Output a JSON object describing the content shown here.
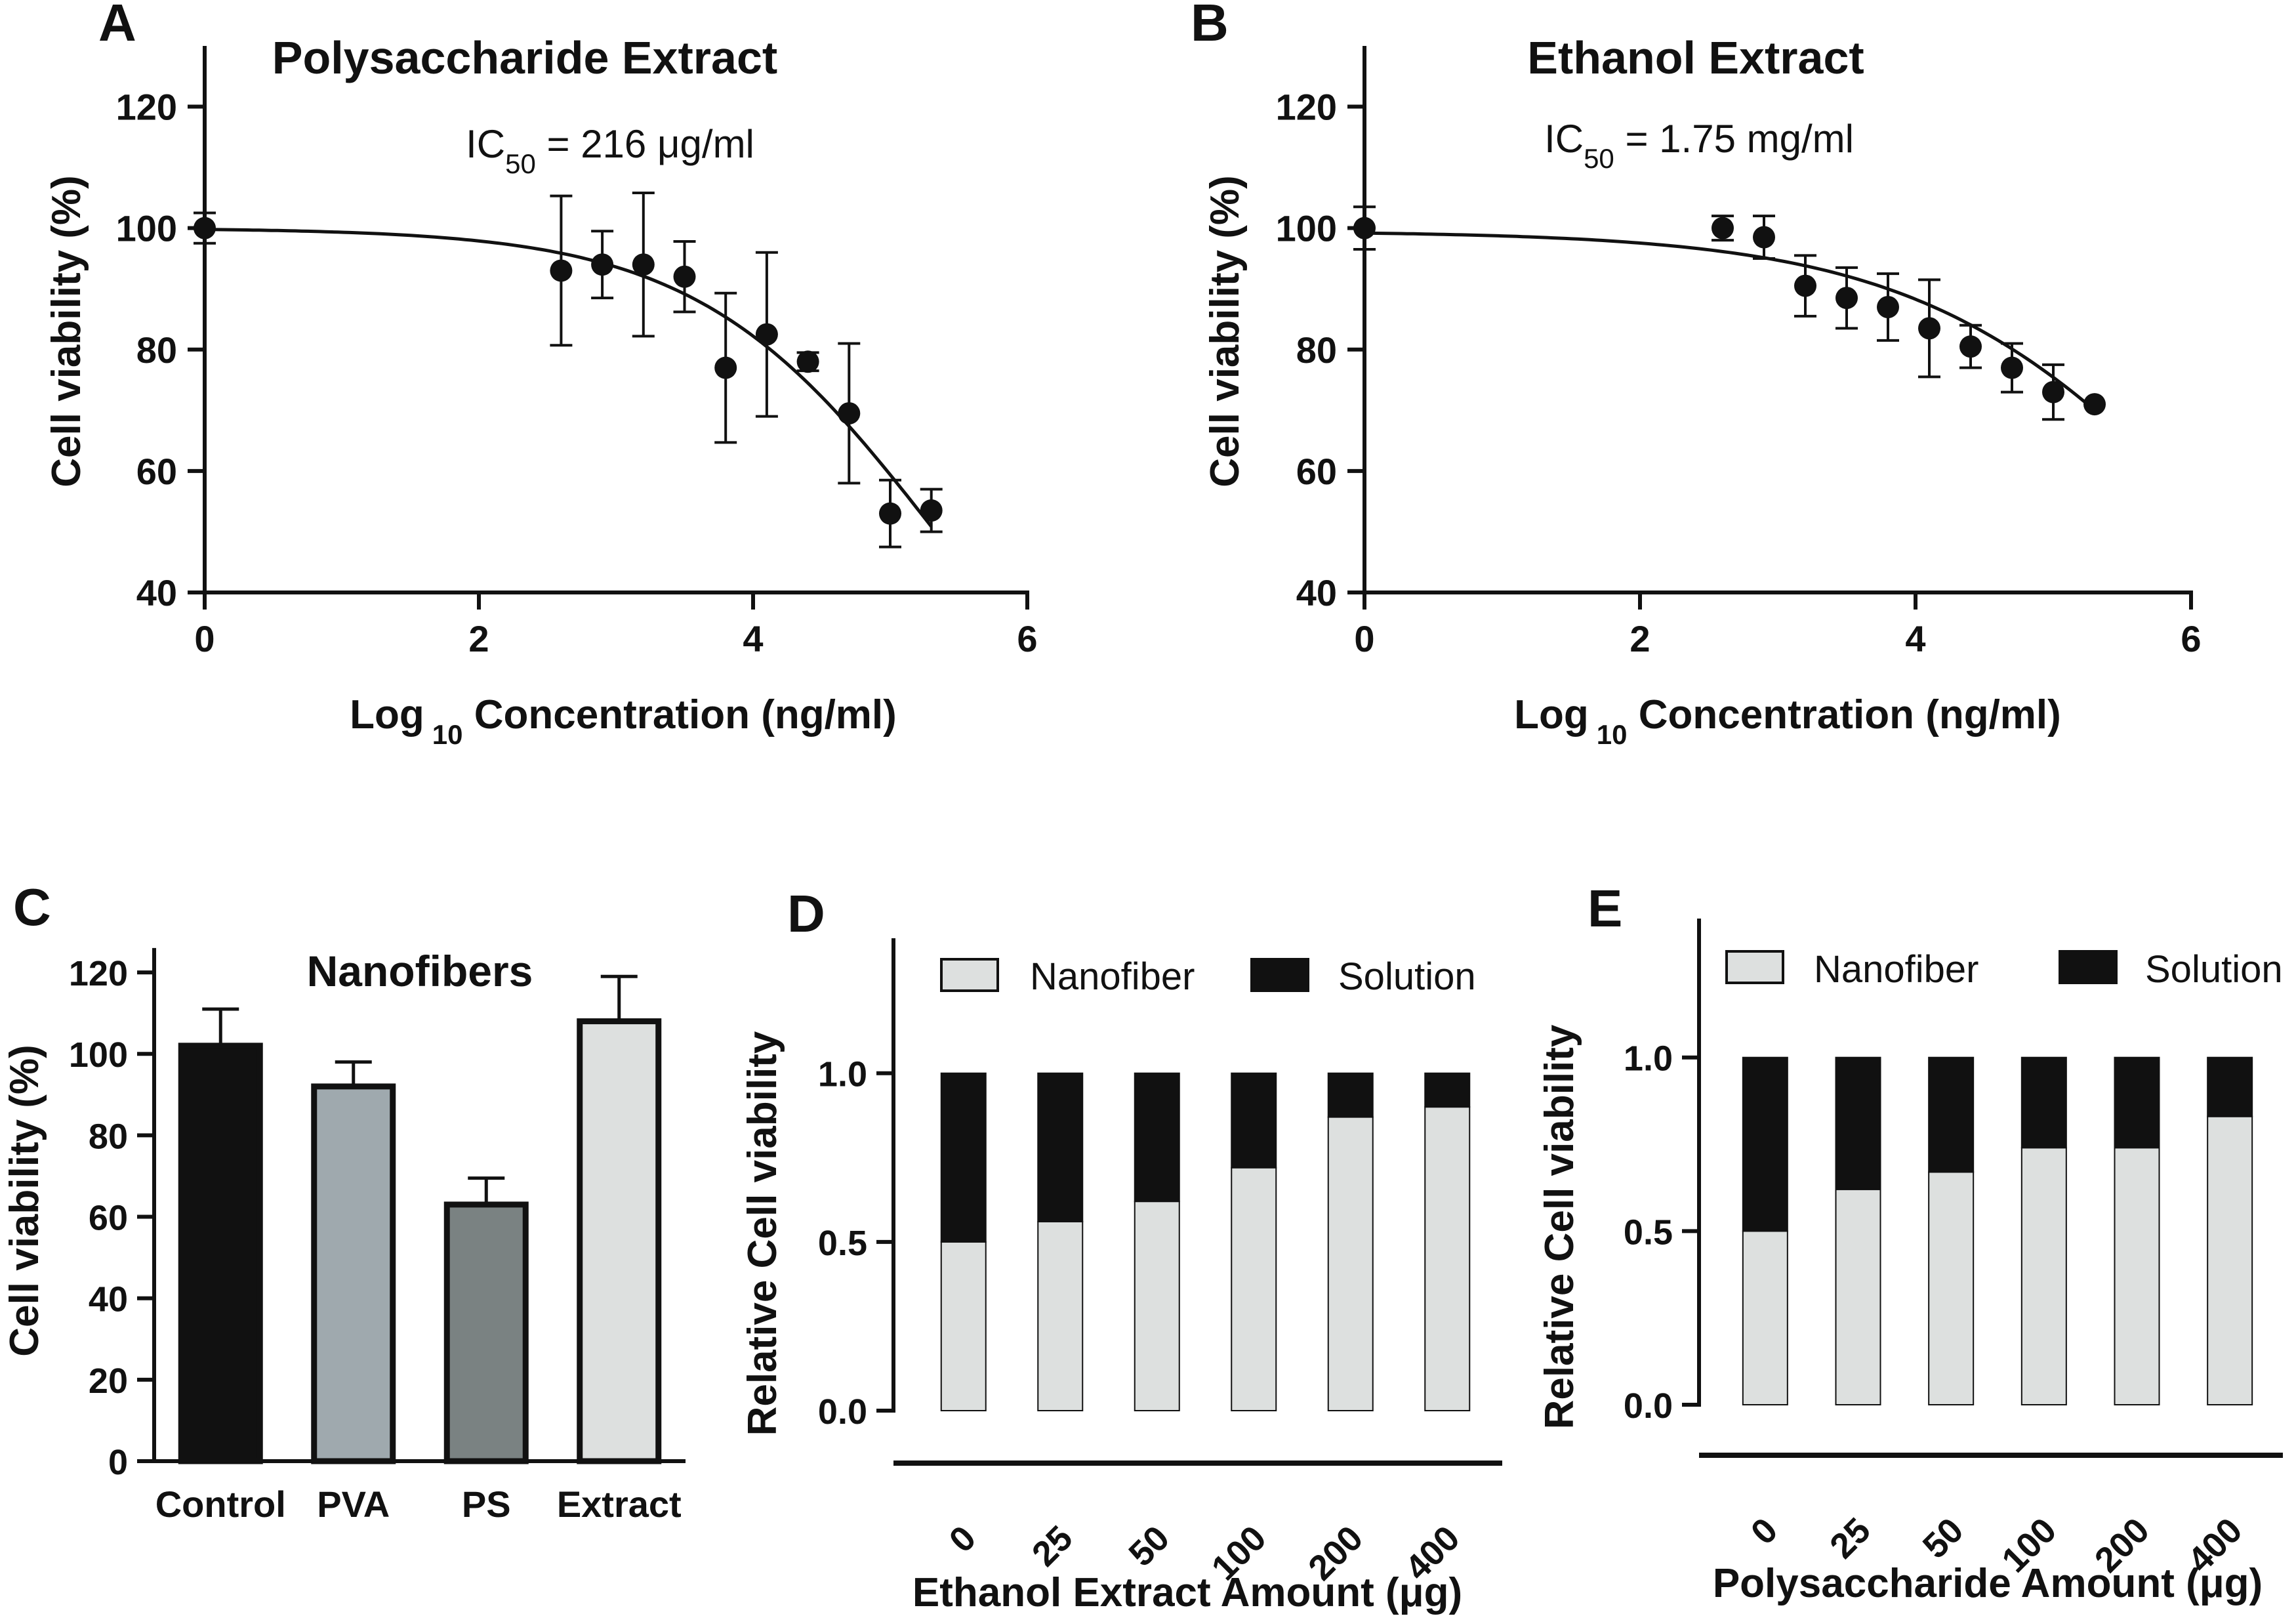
{
  "colors": {
    "ink": "#111111",
    "bar_control": "#111111",
    "bar_pva": "#9fa9ae",
    "bar_ps": "#7a8282",
    "bar_extract": "#dde0df",
    "nanofiber": "#dde0df",
    "solution": "#111111"
  },
  "chart_data": [
    {
      "id": "A",
      "type": "scatter",
      "panel_letter": "A",
      "title": "Polysaccharide Extract",
      "annotation": {
        "prefix": "IC",
        "sub": "50",
        "suffix": " = 216 μg/ml"
      },
      "xlabel": {
        "main": "Log",
        "sub": "10",
        "rest": " Concentration (ng/ml)"
      },
      "ylabel": "Cell viability (%)",
      "xlim": [
        0,
        6
      ],
      "ylim": [
        40,
        130
      ],
      "xticks": [
        "0",
        "2",
        "4",
        "6"
      ],
      "yticks": [
        "40",
        "60",
        "80",
        "100",
        "120"
      ],
      "points": [
        {
          "x": 0,
          "y": 100,
          "err": 2.5
        },
        {
          "x": 2.6,
          "y": 93,
          "err": 12.3
        },
        {
          "x": 2.9,
          "y": 94,
          "err": 5.5
        },
        {
          "x": 3.2,
          "y": 94,
          "err": 11.8
        },
        {
          "x": 3.5,
          "y": 92,
          "err": 5.8
        },
        {
          "x": 3.8,
          "y": 77,
          "err": 12.3
        },
        {
          "x": 4.1,
          "y": 82.5,
          "err": 13.5
        },
        {
          "x": 4.4,
          "y": 78,
          "err": 1.5
        },
        {
          "x": 4.7,
          "y": 69.5,
          "err": 11.5
        },
        {
          "x": 5.0,
          "y": 53,
          "err": 5.5
        },
        {
          "x": 5.3,
          "y": 53.5,
          "err": 3.5
        }
      ],
      "fit": {
        "top": 100,
        "bottom": 0,
        "logIC50": 5.33,
        "hill": 0.5,
        "x_range": [
          0,
          5.3
        ]
      }
    },
    {
      "id": "B",
      "type": "scatter",
      "panel_letter": "B",
      "title": "Ethanol Extract",
      "annotation": {
        "prefix": "IC",
        "sub": "50",
        "suffix": " = 1.75 mg/ml"
      },
      "xlabel": {
        "main": "Log",
        "sub": "10",
        "rest": " Concentration (ng/ml)"
      },
      "ylabel": "Cell viability (%)",
      "xlim": [
        0,
        6
      ],
      "ylim": [
        40,
        130
      ],
      "xticks": [
        "0",
        "2",
        "4",
        "6"
      ],
      "yticks": [
        "40",
        "60",
        "80",
        "100",
        "120"
      ],
      "points": [
        {
          "x": 0,
          "y": 100,
          "err": 3.5
        },
        {
          "x": 2.6,
          "y": 100,
          "err": 2
        },
        {
          "x": 2.9,
          "y": 98.5,
          "err": 3.5
        },
        {
          "x": 3.2,
          "y": 90.5,
          "err": 5
        },
        {
          "x": 3.5,
          "y": 88.5,
          "err": 5
        },
        {
          "x": 3.8,
          "y": 87,
          "err": 5.5
        },
        {
          "x": 4.1,
          "y": 83.5,
          "err": 8
        },
        {
          "x": 4.4,
          "y": 80.5,
          "err": 3.5
        },
        {
          "x": 4.7,
          "y": 77,
          "err": 4
        },
        {
          "x": 5.0,
          "y": 73,
          "err": 4.5
        },
        {
          "x": 5.3,
          "y": 71,
          "err": 0
        }
      ],
      "fit": {
        "top": 99.5,
        "bottom": 0,
        "logIC50": 6.24,
        "hill": 0.4,
        "x_range": [
          0,
          5.3
        ]
      }
    },
    {
      "id": "C",
      "type": "bar",
      "panel_letter": "C",
      "title": "Nanofibers",
      "ylabel": "Cell viability (%)",
      "ylim": [
        0,
        130
      ],
      "yticks": [
        "0",
        "20",
        "40",
        "60",
        "80",
        "100",
        "120"
      ],
      "categories": [
        "Control",
        "PVA",
        "PS",
        "Extract"
      ],
      "values": [
        102,
        92,
        63,
        108
      ],
      "errors": [
        9,
        6,
        6.5,
        11
      ],
      "bar_colors": [
        "#111111",
        "#9fa9ae",
        "#7a8282",
        "#dde0df"
      ]
    },
    {
      "id": "D",
      "type": "bar",
      "stacked": true,
      "panel_letter": "D",
      "xlabel": "Ethanol Extract Amount (μg)",
      "ylabel": "Relative Cell viability",
      "ylim": [
        0,
        1.4
      ],
      "yticks": [
        "0.0",
        "0.5",
        "1.0"
      ],
      "categories": [
        "0",
        "25",
        "50",
        "100",
        "200",
        "400"
      ],
      "series": [
        {
          "name": "Nanofiber",
          "values": [
            0.5,
            0.56,
            0.62,
            0.72,
            0.87,
            0.9
          ]
        },
        {
          "name": "Solution",
          "values": [
            0.5,
            0.44,
            0.38,
            0.28,
            0.13,
            0.1
          ]
        }
      ],
      "legend": "top"
    },
    {
      "id": "E",
      "type": "bar",
      "stacked": true,
      "panel_letter": "E",
      "xlabel": "Polysaccharide Amount (μg)",
      "ylabel": "Relative Cell viability",
      "ylim": [
        0,
        1.4
      ],
      "yticks": [
        "0.0",
        "0.5",
        "1.0"
      ],
      "categories": [
        "0",
        "25",
        "50",
        "100",
        "200",
        "400"
      ],
      "series": [
        {
          "name": "Nanofiber",
          "values": [
            0.5,
            0.62,
            0.67,
            0.74,
            0.74,
            0.83
          ]
        },
        {
          "name": "Solution",
          "values": [
            0.5,
            0.38,
            0.33,
            0.26,
            0.26,
            0.17
          ]
        }
      ],
      "legend": "top"
    }
  ]
}
